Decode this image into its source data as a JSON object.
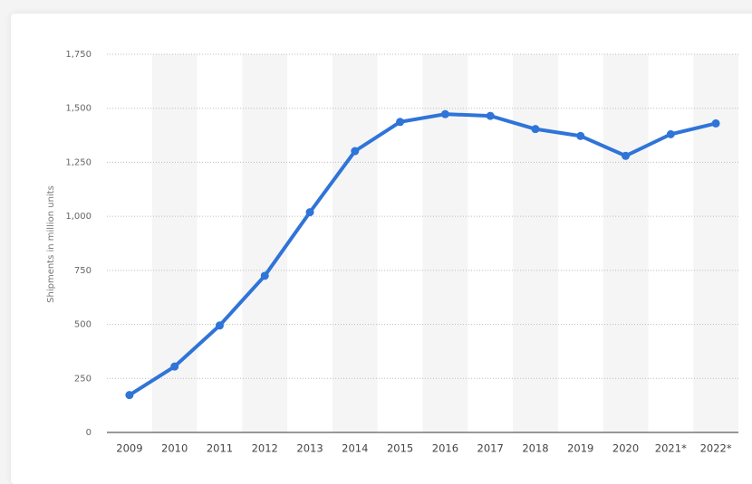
{
  "chart_data": {
    "type": "line",
    "y_axis_label": "Shipments in million units",
    "categories": [
      "2009",
      "2010",
      "2011",
      "2012",
      "2013",
      "2014",
      "2015",
      "2016",
      "2017",
      "2018",
      "2019",
      "2020",
      "2021*",
      "2022*"
    ],
    "series": [
      {
        "name": "Shipments",
        "color": "#2f74d8",
        "values": [
          173,
          305,
          495,
          725,
          1019,
          1302,
          1437,
          1473,
          1465,
          1404,
          1372,
          1280,
          1380,
          1430
        ]
      }
    ],
    "ylim": [
      0,
      1750
    ],
    "yticks": [
      0,
      250,
      500,
      750,
      {
        "value": 1000,
        "label": "1,000"
      },
      {
        "value": 1250,
        "label": "1,250"
      },
      {
        "value": 1500,
        "label": "1,500"
      },
      {
        "value": 1750,
        "label": "1,750"
      }
    ],
    "grid": true
  }
}
